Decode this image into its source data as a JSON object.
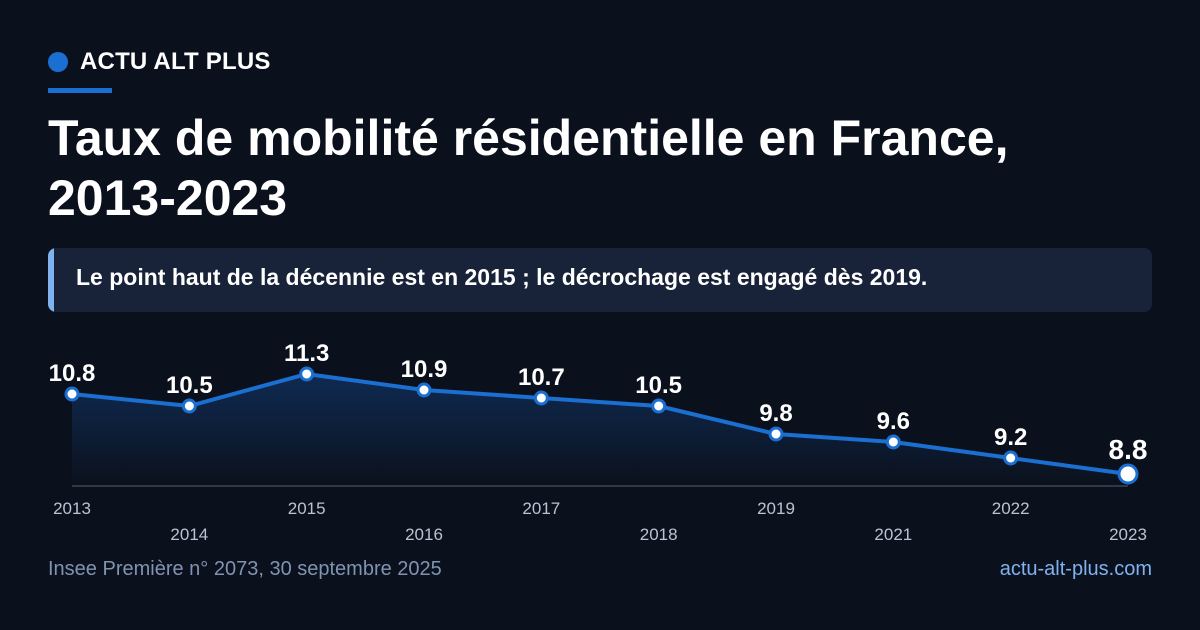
{
  "brand": {
    "name": "ACTU ALT PLUS",
    "color": "#1a6fd1"
  },
  "title": "Taux de mobilité résidentielle en France, 2013-2023",
  "callout": {
    "text": "Le point haut de la décennie est en 2015 ; le décrochage est engagé dès 2019.",
    "accent_color": "#7fb2ef"
  },
  "chart_data": {
    "type": "area",
    "categories": [
      "2013",
      "2014",
      "2015",
      "2016",
      "2017",
      "2018",
      "2019",
      "2021",
      "2022",
      "2023"
    ],
    "values": [
      10.8,
      10.5,
      11.3,
      10.9,
      10.7,
      10.5,
      9.8,
      9.6,
      9.2,
      8.8
    ],
    "value_labels": [
      "10.8",
      "10.5",
      "11.3",
      "10.9",
      "10.7",
      "10.5",
      "9.8",
      "9.6",
      "9.2",
      "8.8"
    ],
    "highlight": "2023",
    "line_color": "#1a6fd1",
    "grid": false,
    "legend": "none"
  },
  "footer": {
    "source": "Insee Première n° 2073, 30 septembre 2025",
    "site": "actu-alt-plus.com"
  }
}
